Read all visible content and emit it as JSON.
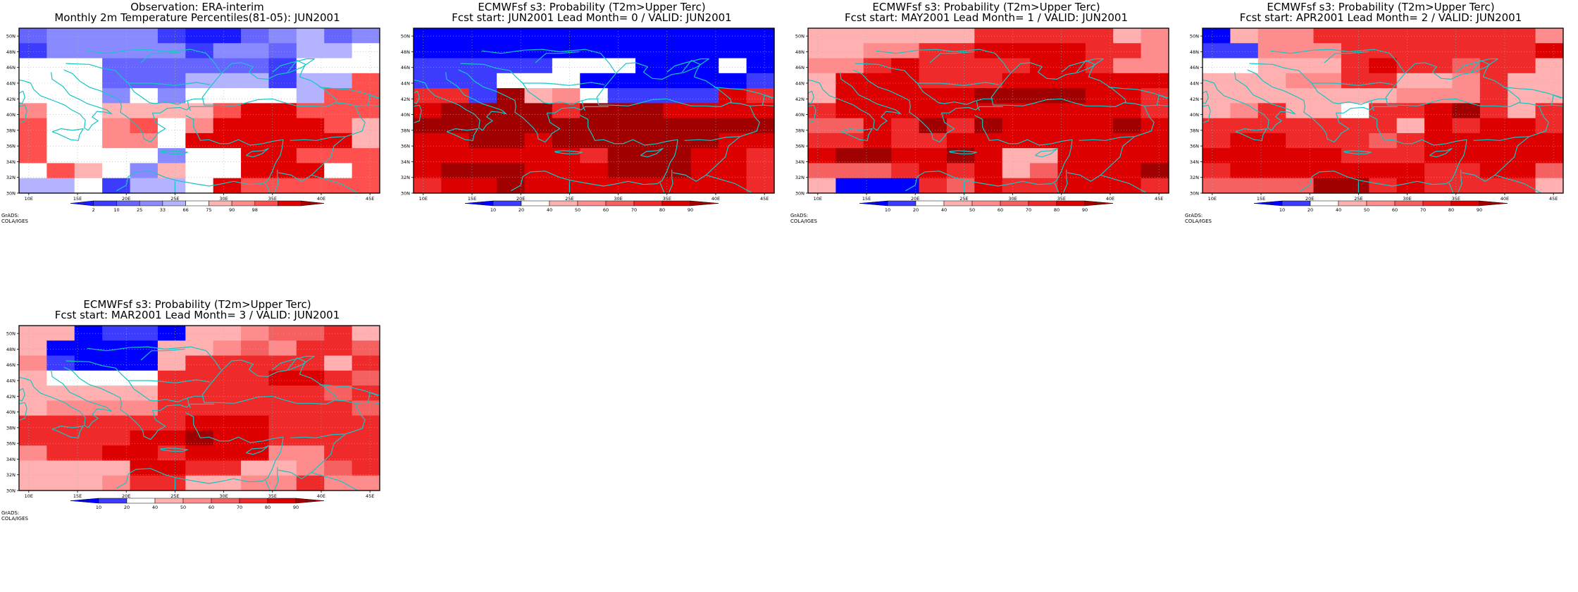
{
  "colors": {
    "coast": "#16c5c5",
    "grid": "#b0b0b0",
    "frame": "#000000",
    "obs_palette": [
      "#1a1aff",
      "#3c3cff",
      "#6666ff",
      "#8a8aff",
      "#b3b3ff",
      "#ffffff",
      "#ffb3b3",
      "#ff8a8a",
      "#ff5050",
      "#e00000",
      "#a00000"
    ],
    "prob_palette": [
      "#0000ff",
      "#3c3cff",
      "#ffffff",
      "#ffb0b0",
      "#ff8c8c",
      "#f56060",
      "#ee2a2a",
      "#dd0000",
      "#a00000"
    ]
  },
  "common": {
    "lon_labels": [
      "10E",
      "15E",
      "20E",
      "25E",
      "30E",
      "35E",
      "40E",
      "45E"
    ],
    "lat_labels": [
      "50N",
      "48N",
      "46N",
      "44N",
      "42N",
      "40N",
      "38N",
      "36N",
      "34N",
      "32N",
      "30N"
    ],
    "credit": "GrADS: COLA/IGES"
  },
  "panels": [
    {
      "id": "obs",
      "title1": "Observation: ERA-interim",
      "title2": "Monthly 2m Temperature Percentiles(81-05): JUN2001",
      "scale": "obs",
      "colorbar_labels": [
        "2",
        "10",
        "25",
        "33",
        "66",
        "75",
        "90",
        "98"
      ],
      "grid": [
        "2333310023423",
        "1333331332445",
        "5552222221555",
        "5552224441448",
        "5553535555488",
        "7556666899888",
        "8557857999986",
        "8557759999996",
        "8555535599888",
        "5865365599958",
        "4451445988888"
      ]
    },
    {
      "id": "lead0",
      "title1": "ECMWFsf s3: Probability (T2m>Upper Terc)",
      "title2": "Fcst start: JUN2001   Lead Month= 0 / VALID: JUN2001",
      "scale": "prob",
      "colorbar_labels": [
        "10",
        "20",
        "40",
        "50",
        "60",
        "70",
        "80",
        "90"
      ],
      "grid": [
        "0000000000000",
        "0000000000000",
        "1111122200020",
        "1112220000001",
        "6618342111176",
        "7888868887777",
        "8888888888888",
        "7788788888877",
        "7777776888776",
        "7888777888776",
        "6778777777776"
      ]
    },
    {
      "id": "lead1",
      "title1": "ECMWFsf s3: Probability (T2m>Upper Terc)",
      "title2": "Fcst start: MAY2001   Lead Month= 1 / VALID: JUN2001",
      "scale": "prob",
      "colorbar_labels": [
        "10",
        "20",
        "40",
        "50",
        "60",
        "70",
        "80",
        "90"
      ],
      "grid": [
        "3333336666634",
        "3344667777664",
        "4467666677644",
        "3777666777777",
        "3777778888776",
        "6777777777776",
        "5576868777787",
        "6676677777777",
        "7887787337777",
        "5556767357778",
        "3000657667776"
      ]
    },
    {
      "id": "lead2",
      "title1": "ECMWFsf s3: Probability (T2m>Upper Terc)",
      "title2": "Fcst start: APR2001   Lead Month= 2 / VALID: JUN2001",
      "scale": "prob",
      "colorbar_labels": [
        "10",
        "20",
        "40",
        "50",
        "60",
        "70",
        "80",
        "90"
      ],
      "grid": [
        "0344666666664",
        "1144466666667",
        "2233367665663",
        "3334466334633",
        "3333333444633",
        "3463326678636",
        "6666666376776",
        "6776665677777",
        "7777766677777",
        "6777777766775",
        "5555886766663"
      ]
    },
    {
      "id": "lead3",
      "title1": "ECMWFsf s3: Probability (T2m>Upper Terc)",
      "title2": "Fcst start: MAR2001   Lead Month= 3 / VALID: JUN2001",
      "scale": "prob",
      "colorbar_labels": [
        "10",
        "20",
        "40",
        "50",
        "60",
        "70",
        "80",
        "90"
      ],
      "grid": [
        "3301103345563",
        "3000033454665",
        "4100036666636",
        "3222266667765",
        "3333366666656",
        "3444466666665",
        "6666667776666",
        "6666778776666",
        "4667767774466",
        "3333776633456",
        "3334663344644"
      ]
    }
  ]
}
